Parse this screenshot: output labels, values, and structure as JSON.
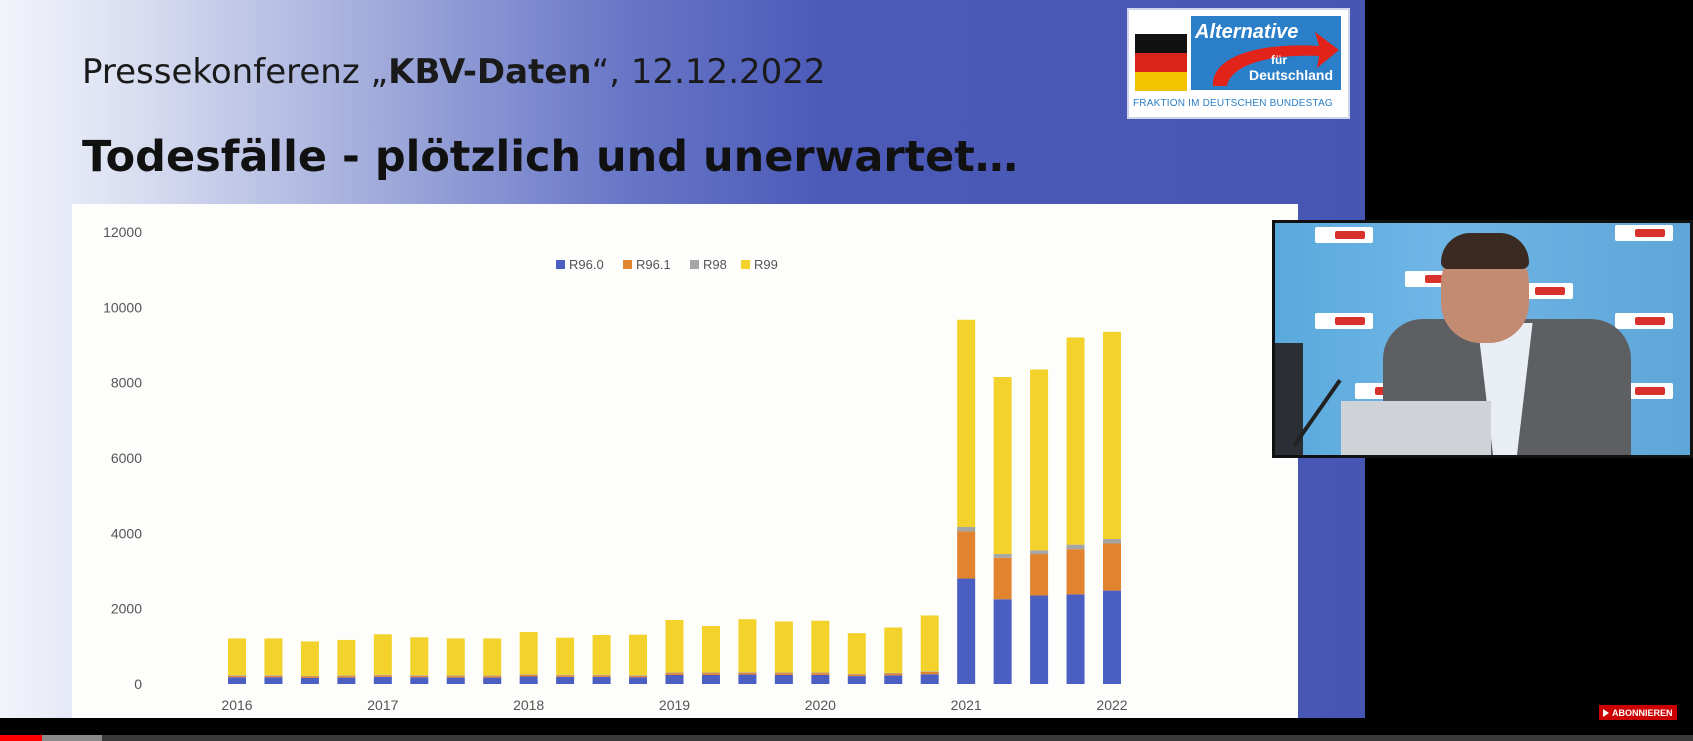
{
  "slide": {
    "subtitle_prefix": "Pressekonferenz „",
    "subtitle_bold": "KBV-Daten",
    "subtitle_suffix": "“, 12.12.2022",
    "title": "Todesfälle - plötzlich und unerwartet…"
  },
  "logo": {
    "name_line1": "Alternative",
    "name_line2": "für",
    "name_line3": "Deutschland",
    "subline": "FRAKTION IM DEUTSCHEN BUNDESTAG",
    "colors": {
      "blue": "#2a7fc8",
      "red": "#e2231a"
    }
  },
  "chart_data": {
    "type": "bar",
    "stacked": true,
    "title": "",
    "xlabel": "",
    "ylabel": "",
    "ylim": [
      0,
      12000
    ],
    "yticks": [
      0,
      2000,
      4000,
      6000,
      8000,
      10000,
      12000
    ],
    "xtick_labels": [
      "2016",
      "2017",
      "2018",
      "2019",
      "2020",
      "2021",
      "2022"
    ],
    "grid": false,
    "legend_position": "top-center",
    "categories": [
      "2016 Q1",
      "2016 Q2",
      "2016 Q3",
      "2016 Q4",
      "2017 Q1",
      "2017 Q2",
      "2017 Q3",
      "2017 Q4",
      "2018 Q1",
      "2018 Q2",
      "2018 Q3",
      "2018 Q4",
      "2019 Q1",
      "2019 Q2",
      "2019 Q3",
      "2019 Q4",
      "2020 Q1",
      "2020 Q2",
      "2020 Q3",
      "2020 Q4",
      "2021 Q1",
      "2021 Q2",
      "2021 Q3",
      "2021 Q4",
      "2022 Q1"
    ],
    "series": [
      {
        "name": "R96.0",
        "color": "#4a5fc1",
        "values": [
          180,
          180,
          160,
          170,
          190,
          180,
          170,
          170,
          200,
          190,
          190,
          180,
          240,
          240,
          250,
          240,
          240,
          210,
          230,
          260,
          2800,
          2250,
          2350,
          2380,
          2480
        ]
      },
      {
        "name": "R96.1",
        "color": "#e2832f",
        "values": [
          40,
          40,
          40,
          40,
          40,
          40,
          40,
          40,
          40,
          40,
          40,
          40,
          50,
          50,
          50,
          50,
          50,
          40,
          50,
          60,
          1250,
          1100,
          1100,
          1200,
          1250
        ]
      },
      {
        "name": "R98",
        "color": "#a5a5a5",
        "values": [
          15,
          15,
          15,
          15,
          15,
          15,
          15,
          15,
          15,
          15,
          15,
          15,
          15,
          15,
          15,
          15,
          15,
          15,
          15,
          15,
          120,
          100,
          100,
          120,
          120
        ]
      },
      {
        "name": "R99",
        "color": "#f2d22b",
        "values": [
          975,
          975,
          915,
          945,
          1075,
          1005,
          985,
          985,
          1125,
          985,
          1055,
          1075,
          1395,
          1235,
          1405,
          1355,
          1375,
          1085,
          1205,
          1485,
          5500,
          4700,
          4800,
          5500,
          5500
        ]
      }
    ]
  },
  "video": {
    "subscribe_label": "ABONNIEREN",
    "progress": 0.025,
    "buffered": 0.06
  }
}
